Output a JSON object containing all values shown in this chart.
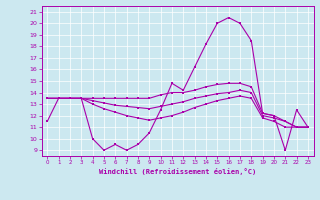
{
  "xlabel": "Windchill (Refroidissement éolien,°C)",
  "background_color": "#cce8f0",
  "line_color": "#aa00aa",
  "xlim": [
    -0.5,
    23.5
  ],
  "ylim": [
    8.5,
    21.5
  ],
  "yticks": [
    9,
    10,
    11,
    12,
    13,
    14,
    15,
    16,
    17,
    18,
    19,
    20,
    21
  ],
  "xticks": [
    0,
    1,
    2,
    3,
    4,
    5,
    6,
    7,
    8,
    9,
    10,
    11,
    12,
    13,
    14,
    15,
    16,
    17,
    18,
    19,
    20,
    21,
    22,
    23
  ],
  "series": [
    [
      11.5,
      13.5,
      13.5,
      13.5,
      10.0,
      9.0,
      9.5,
      9.0,
      9.5,
      10.5,
      12.5,
      14.8,
      14.2,
      16.2,
      18.2,
      20.0,
      20.5,
      20.0,
      18.5,
      12.2,
      12.0,
      9.0,
      12.5,
      11.0
    ],
    [
      13.5,
      13.5,
      13.5,
      13.5,
      13.5,
      13.5,
      13.5,
      13.5,
      13.5,
      13.5,
      13.8,
      14.0,
      14.0,
      14.2,
      14.5,
      14.7,
      14.8,
      14.8,
      14.5,
      12.2,
      12.0,
      11.5,
      11.0,
      11.0
    ],
    [
      13.5,
      13.5,
      13.5,
      13.5,
      13.3,
      13.1,
      12.9,
      12.8,
      12.7,
      12.6,
      12.8,
      13.0,
      13.2,
      13.5,
      13.7,
      13.9,
      14.0,
      14.2,
      14.0,
      12.0,
      11.8,
      11.5,
      11.0,
      11.0
    ],
    [
      13.5,
      13.5,
      13.5,
      13.5,
      13.0,
      12.6,
      12.3,
      12.0,
      11.8,
      11.6,
      11.8,
      12.0,
      12.3,
      12.7,
      13.0,
      13.3,
      13.5,
      13.7,
      13.5,
      11.8,
      11.5,
      11.0,
      11.0,
      11.0
    ]
  ]
}
